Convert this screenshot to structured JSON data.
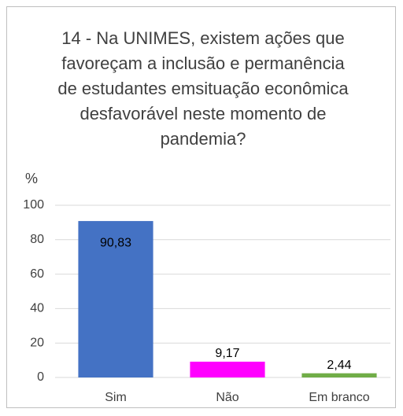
{
  "chart_data": {
    "type": "bar",
    "title": "14 - Na UNIMES, existem ações que favoreçam a inclusão e permanência de estudantes emsituação econômica desfavorável neste momento de pandemia?",
    "y_label": "%",
    "categories": [
      "Sim",
      "Não",
      "Em branco"
    ],
    "values": [
      90.83,
      9.17,
      2.44
    ],
    "value_labels": [
      "90,83",
      "9,17",
      "2,44"
    ],
    "colors": [
      "#4472c4",
      "#ff00ff",
      "#70ad47"
    ],
    "ylim": [
      0,
      100
    ],
    "yticks": [
      0,
      20,
      40,
      60,
      80,
      100
    ],
    "grid": true
  }
}
